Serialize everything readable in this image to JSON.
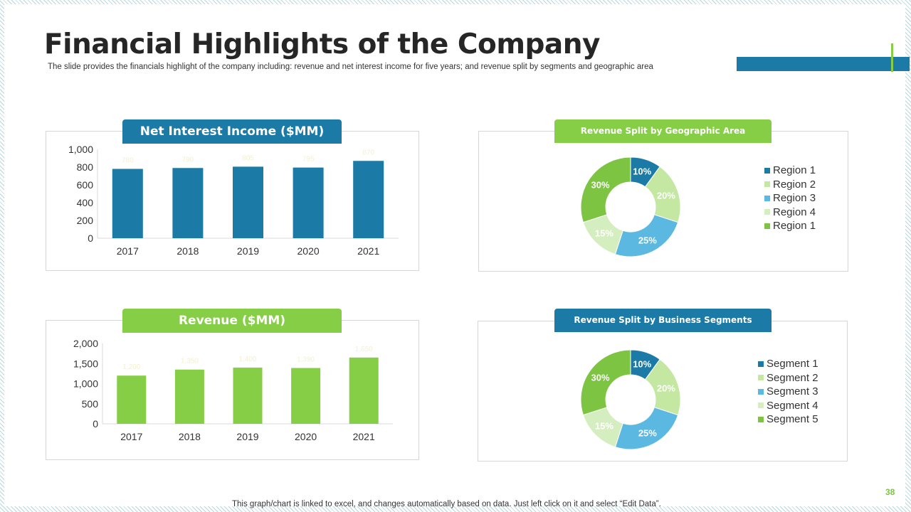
{
  "slide": {
    "title": "Financial Highlights of the Company",
    "subtitle": "The slide provides the financials highlight of the company including: revenue and net interest income for five years; and revenue split by segments and geographic area",
    "footnote": "This graph/chart is linked to excel, and changes automatically based on data. Just left click on it and select “Edit Data”.",
    "page_number": "38"
  },
  "colors": {
    "blue": "#1b7aa6",
    "green": "#86ce46",
    "light_green": "#c4e8a2",
    "sky_blue": "#5bb8e0",
    "pale_green": "#d5eec0",
    "mid_green": "#7cc442"
  },
  "chart_data": [
    {
      "id": "net-interest-income",
      "type": "bar",
      "title": "Net Interest Income ($MM)",
      "categories": [
        "2017",
        "2018",
        "2019",
        "2020",
        "2021"
      ],
      "values": [
        780,
        790,
        805,
        795,
        870
      ],
      "data_labels": [
        "780",
        "790",
        "805",
        "795",
        "870"
      ],
      "yticks": [
        "0",
        "200",
        "400",
        "600",
        "800",
        "1,000"
      ],
      "ylim": [
        0,
        1000
      ],
      "color": "#1b7aa6"
    },
    {
      "id": "revenue",
      "type": "bar",
      "title": "Revenue ($MM)",
      "categories": [
        "2017",
        "2018",
        "2019",
        "2020",
        "2021"
      ],
      "values": [
        1200,
        1350,
        1400,
        1390,
        1650
      ],
      "data_labels": [
        "1,200",
        "1,350",
        "1,400",
        "1,390",
        "1,650"
      ],
      "yticks": [
        "0",
        "500",
        "1,000",
        "1,500",
        "2,000"
      ],
      "ylim": [
        0,
        2000
      ],
      "color": "#86ce46"
    },
    {
      "id": "geographic-split",
      "type": "pie",
      "donut": true,
      "title": "Revenue Split by Geographic Area",
      "labels": [
        "Region 1",
        "Region 2",
        "Region 3",
        "Region 4",
        "Region 1"
      ],
      "values": [
        10,
        20,
        25,
        15,
        30
      ],
      "value_labels": [
        "10%",
        "20%",
        "25%",
        "15%",
        "30%"
      ],
      "colors": [
        "#1b7aa6",
        "#c4e8a2",
        "#5bb8e0",
        "#d5eec0",
        "#7cc442"
      ]
    },
    {
      "id": "segment-split",
      "type": "pie",
      "donut": true,
      "title": "Revenue Split by Business Segments",
      "labels": [
        "Segment 1",
        "Segment 2",
        "Segment 3",
        "Segment 4",
        "Segment 5"
      ],
      "values": [
        10,
        20,
        25,
        15,
        30
      ],
      "value_labels": [
        "10%",
        "20%",
        "25%",
        "15%",
        "30%"
      ],
      "colors": [
        "#1b7aa6",
        "#c4e8a2",
        "#5bb8e0",
        "#d5eec0",
        "#7cc442"
      ]
    }
  ]
}
